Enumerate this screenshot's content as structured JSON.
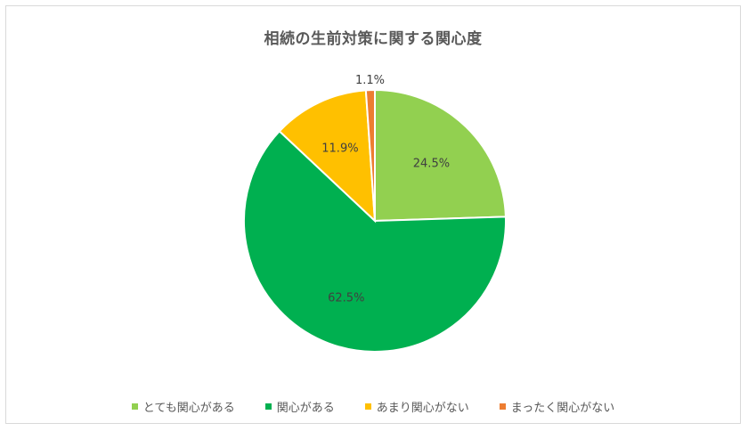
{
  "chart_data": {
    "type": "pie",
    "title": "相続の生前対策に関する関心度",
    "slices": [
      {
        "label": "とても関心がある",
        "value": 24.5,
        "display": "24.5%",
        "color": "#92d050"
      },
      {
        "label": "関心がある",
        "value": 62.5,
        "display": "62.5%",
        "color": "#00b050"
      },
      {
        "label": "あまり関心がない",
        "value": 11.9,
        "display": "11.9%",
        "color": "#ffc000"
      },
      {
        "label": "まったく関心がない",
        "value": 1.1,
        "display": "1.1%",
        "color": "#ed7d31"
      }
    ],
    "start_angle": "top",
    "direction": "clockwise",
    "legend_position": "bottom"
  }
}
